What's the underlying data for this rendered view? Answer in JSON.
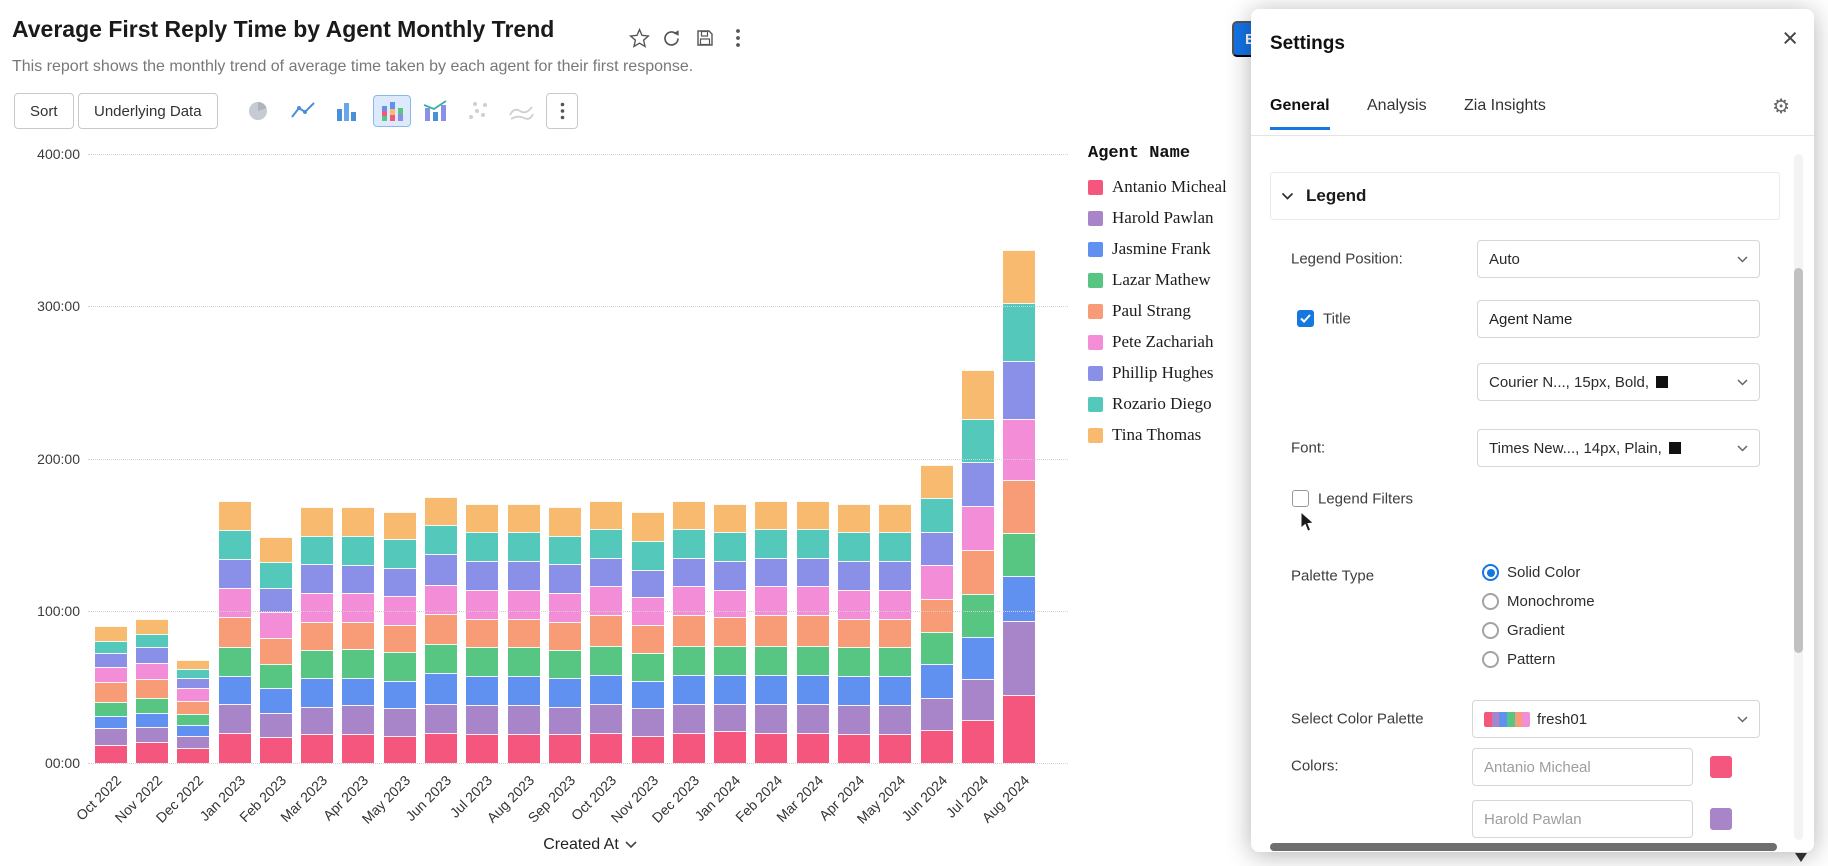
{
  "header": {
    "title": "Average First Reply Time by Agent Monthly Trend",
    "subtitle": "This report shows the monthly trend of average time taken by each agent for their first response."
  },
  "toolbar": {
    "sort": "Sort",
    "underlying_data": "Underlying Data"
  },
  "edit_button": {
    "visible_label": "E"
  },
  "chart_data": {
    "type": "bar",
    "stacked": true,
    "title": "",
    "xlabel": "Created At",
    "ylabel": "",
    "ylim": [
      0,
      400
    ],
    "ytick_values": [
      0,
      100,
      200,
      300,
      400
    ],
    "ytick_labels": [
      "00:00",
      "100:00",
      "200:00",
      "300:00",
      "400:00"
    ],
    "grid": true,
    "legend_title": "Agent Name",
    "legend_position": "right",
    "categories": [
      "Oct 2022",
      "Nov 2022",
      "Dec 2022",
      "Jan 2023",
      "Feb 2023",
      "Mar 2023",
      "Apr 2023",
      "May 2023",
      "Jun 2023",
      "Jul 2023",
      "Aug 2023",
      "Sep 2023",
      "Oct 2023",
      "Nov 2023",
      "Dec 2023",
      "Jan 2024",
      "Feb 2024",
      "Mar 2024",
      "Apr 2024",
      "May 2024",
      "Jun 2024",
      "Jul 2024",
      "Aug 2024"
    ],
    "series": [
      {
        "name": "Antanio Micheal",
        "color": "#F4567E",
        "values": [
          12,
          14,
          10,
          20,
          17,
          19,
          19,
          18,
          20,
          19,
          19,
          19,
          20,
          18,
          20,
          21,
          20,
          20,
          19,
          19,
          22,
          28,
          45
        ]
      },
      {
        "name": "Harold Pawlan",
        "color": "#A885C9",
        "values": [
          11,
          10,
          8,
          19,
          16,
          18,
          19,
          18,
          19,
          19,
          19,
          18,
          19,
          18,
          19,
          18,
          19,
          19,
          19,
          19,
          21,
          27,
          48
        ]
      },
      {
        "name": "Jasmine Frank",
        "color": "#6191F0",
        "values": [
          8,
          9,
          7,
          18,
          16,
          19,
          18,
          18,
          20,
          19,
          19,
          19,
          19,
          18,
          19,
          19,
          19,
          19,
          19,
          19,
          22,
          28,
          30
        ]
      },
      {
        "name": "Lazar Mathew",
        "color": "#57C683",
        "values": [
          9,
          10,
          7,
          19,
          16,
          18,
          19,
          19,
          19,
          19,
          19,
          18,
          19,
          18,
          19,
          19,
          19,
          19,
          19,
          19,
          21,
          28,
          28
        ]
      },
      {
        "name": "Paul Strang",
        "color": "#F89B77",
        "values": [
          13,
          12,
          9,
          20,
          17,
          19,
          18,
          18,
          20,
          19,
          19,
          19,
          20,
          19,
          20,
          19,
          20,
          20,
          19,
          19,
          22,
          29,
          35
        ]
      },
      {
        "name": "Pete Zachariah",
        "color": "#F38DD8",
        "values": [
          10,
          11,
          8,
          19,
          17,
          19,
          19,
          19,
          19,
          19,
          19,
          19,
          19,
          18,
          19,
          18,
          19,
          19,
          19,
          19,
          22,
          29,
          40
        ]
      },
      {
        "name": "Phillip Hughes",
        "color": "#8A90E8",
        "values": [
          9,
          10,
          7,
          19,
          16,
          19,
          18,
          18,
          20,
          19,
          19,
          19,
          19,
          18,
          19,
          19,
          19,
          19,
          19,
          19,
          22,
          29,
          38
        ]
      },
      {
        "name": "Rozario Diego",
        "color": "#54C9BB",
        "values": [
          8,
          9,
          6,
          19,
          17,
          18,
          19,
          19,
          19,
          19,
          19,
          18,
          19,
          19,
          19,
          19,
          19,
          19,
          19,
          19,
          22,
          28,
          38
        ]
      },
      {
        "name": "Tina Thomas",
        "color": "#F8BA6F",
        "values": [
          10,
          10,
          6,
          19,
          16,
          19,
          19,
          18,
          19,
          18,
          18,
          19,
          18,
          19,
          18,
          18,
          18,
          18,
          18,
          18,
          22,
          32,
          35
        ]
      }
    ]
  },
  "settings": {
    "title": "Settings",
    "tabs": [
      "General",
      "Analysis",
      "Zia Insights"
    ],
    "active_tab": "General",
    "legend_section": {
      "title": "Legend",
      "position_label": "Legend Position:",
      "position_value": "Auto",
      "title_checkbox_label": "Title",
      "title_checked": true,
      "title_value": "Agent Name",
      "title_font_value": "Courier N..., 15px, Bold,",
      "font_label": "Font:",
      "font_value": "Times New..., 14px, Plain,",
      "legend_filters_label": "Legend Filters",
      "legend_filters_checked": false
    },
    "palette": {
      "type_label": "Palette Type",
      "options": [
        "Solid Color",
        "Monochrome",
        "Gradient",
        "Pattern"
      ],
      "selected": "Solid Color",
      "select_label": "Select Color Palette",
      "selected_palette": "fresh01"
    },
    "colors": {
      "label": "Colors:",
      "rows": [
        {
          "agent": "Antanio Micheal",
          "color": "#F4567E"
        },
        {
          "agent": "Harold Pawlan",
          "color": "#A885C9"
        }
      ]
    }
  }
}
